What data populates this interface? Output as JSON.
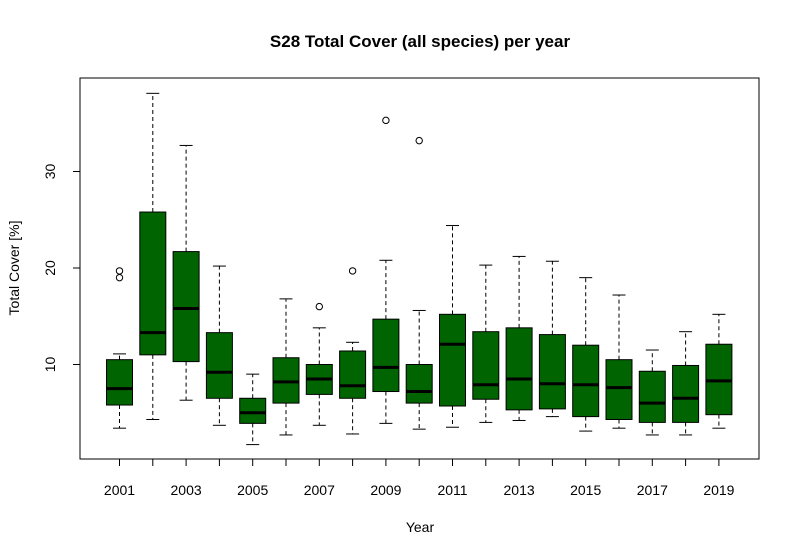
{
  "chart_data": {
    "type": "boxplot",
    "title": "S28 Total Cover (all species) per year",
    "xlabel": "Year",
    "ylabel": "Total Cover [%]",
    "box_color": "#006400",
    "ylim": [
      0.5,
      40
    ],
    "y_ticks": [
      10,
      20,
      30
    ],
    "x_tick_labels": [
      "2001",
      "2003",
      "2005",
      "2007",
      "2009",
      "2011",
      "2013",
      "2015",
      "2017",
      "2019"
    ],
    "categories": [
      "2001",
      "2002",
      "2003",
      "2004",
      "2005",
      "2006",
      "2007",
      "2008",
      "2009",
      "2010",
      "2011",
      "2012",
      "2013",
      "2014",
      "2015",
      "2016",
      "2017",
      "2018",
      "2019"
    ],
    "boxes": [
      {
        "year": "2001",
        "min": 3.4,
        "q1": 5.8,
        "median": 7.5,
        "q3": 10.5,
        "max": 11.1,
        "outliers": [
          19.0,
          19.7
        ]
      },
      {
        "year": "2002",
        "min": 4.3,
        "q1": 11.0,
        "median": 13.3,
        "q3": 25.8,
        "max": 38.1,
        "outliers": []
      },
      {
        "year": "2003",
        "min": 6.3,
        "q1": 10.3,
        "median": 15.8,
        "q3": 21.7,
        "max": 32.7,
        "outliers": []
      },
      {
        "year": "2004",
        "min": 3.7,
        "q1": 6.5,
        "median": 9.2,
        "q3": 13.3,
        "max": 20.2,
        "outliers": []
      },
      {
        "year": "2005",
        "min": 1.7,
        "q1": 3.9,
        "median": 5.0,
        "q3": 6.5,
        "max": 9.0,
        "outliers": []
      },
      {
        "year": "2006",
        "min": 2.7,
        "q1": 6.0,
        "median": 8.2,
        "q3": 10.7,
        "max": 16.8,
        "outliers": []
      },
      {
        "year": "2007",
        "min": 3.7,
        "q1": 6.9,
        "median": 8.5,
        "q3": 10.0,
        "max": 13.8,
        "outliers": [
          16.0
        ]
      },
      {
        "year": "2008",
        "min": 2.8,
        "q1": 6.5,
        "median": 7.8,
        "q3": 11.4,
        "max": 12.3,
        "outliers": [
          19.7
        ]
      },
      {
        "year": "2009",
        "min": 3.9,
        "q1": 7.2,
        "median": 9.7,
        "q3": 14.7,
        "max": 20.8,
        "outliers": [
          35.3
        ]
      },
      {
        "year": "2010",
        "min": 3.3,
        "q1": 6.0,
        "median": 7.2,
        "q3": 10.0,
        "max": 15.6,
        "outliers": [
          33.2
        ]
      },
      {
        "year": "2011",
        "min": 3.5,
        "q1": 5.7,
        "median": 12.1,
        "q3": 15.2,
        "max": 24.4,
        "outliers": []
      },
      {
        "year": "2012",
        "min": 4.0,
        "q1": 6.4,
        "median": 7.9,
        "q3": 13.4,
        "max": 20.3,
        "outliers": []
      },
      {
        "year": "2013",
        "min": 4.2,
        "q1": 5.3,
        "median": 8.5,
        "q3": 13.8,
        "max": 21.2,
        "outliers": []
      },
      {
        "year": "2014",
        "min": 4.6,
        "q1": 5.4,
        "median": 8.0,
        "q3": 13.1,
        "max": 20.7,
        "outliers": []
      },
      {
        "year": "2015",
        "min": 3.1,
        "q1": 4.6,
        "median": 7.9,
        "q3": 12.0,
        "max": 19.0,
        "outliers": []
      },
      {
        "year": "2016",
        "min": 3.4,
        "q1": 4.3,
        "median": 7.6,
        "q3": 10.5,
        "max": 17.2,
        "outliers": []
      },
      {
        "year": "2017",
        "min": 2.7,
        "q1": 4.0,
        "median": 6.0,
        "q3": 9.3,
        "max": 11.5,
        "outliers": []
      },
      {
        "year": "2018",
        "min": 2.7,
        "q1": 4.0,
        "median": 6.5,
        "q3": 9.9,
        "max": 13.4,
        "outliers": []
      },
      {
        "year": "2019",
        "min": 3.4,
        "q1": 4.8,
        "median": 8.3,
        "q3": 12.1,
        "max": 15.2,
        "outliers": []
      }
    ]
  }
}
